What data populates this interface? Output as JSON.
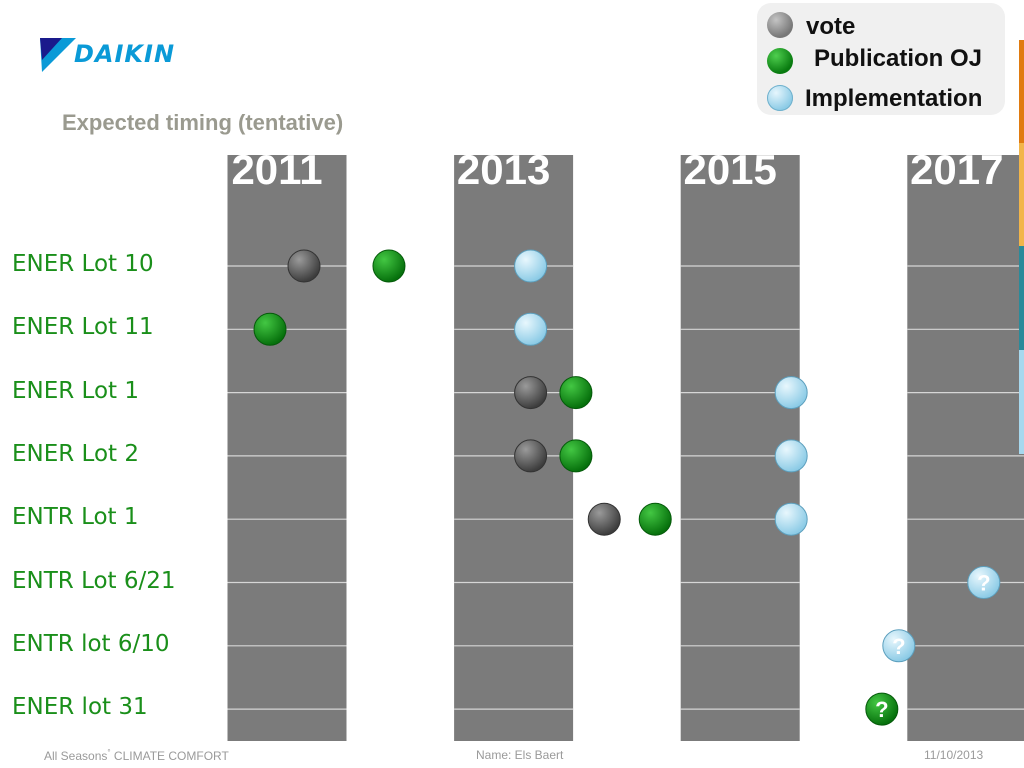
{
  "header": {
    "logo_text": "DAIKIN",
    "subtitle": "Expected timing (tentative)"
  },
  "legend": [
    {
      "label": "vote",
      "color": "#8a8a8a"
    },
    {
      "label": "Publication OJ",
      "color": "#0b8a14"
    },
    {
      "label": "Implementation",
      "color": "#a7d8ee"
    }
  ],
  "chart_data": {
    "type": "scatter",
    "title": "Expected timing (tentative)",
    "x_tick_labels": [
      "2011",
      "2013",
      "2015",
      "2017"
    ],
    "categories": [
      "ENER Lot 10",
      "ENER Lot 11",
      "ENER Lot 1",
      "ENER Lot 2",
      "ENTR Lot 1",
      "ENTR Lot 6/21",
      "ENTR lot 6/10",
      "ENER lot 31"
    ],
    "series": [
      {
        "name": "vote",
        "color": "#555555",
        "points": [
          {
            "category": "ENER Lot 10",
            "x": 2011.15
          },
          {
            "category": "ENER Lot 1",
            "x": 2013.15
          },
          {
            "category": "ENER Lot 2",
            "x": 2013.15
          },
          {
            "category": "ENTR Lot 1",
            "x": 2013.8
          }
        ]
      },
      {
        "name": "Publication OJ",
        "color": "#0b8a14",
        "points": [
          {
            "category": "ENER Lot 10",
            "x": 2011.9
          },
          {
            "category": "ENER Lot 11",
            "x": 2010.85
          },
          {
            "category": "ENER Lot 1",
            "x": 2013.55
          },
          {
            "category": "ENER Lot 2",
            "x": 2013.55
          },
          {
            "category": "ENTR Lot 1",
            "x": 2014.25
          },
          {
            "category": "ENER lot 31",
            "x": 2016.25,
            "tentative": true,
            "marker_text": "?"
          }
        ]
      },
      {
        "name": "Implementation",
        "color": "#a7d8ee",
        "points": [
          {
            "category": "ENER Lot 10",
            "x": 2013.15
          },
          {
            "category": "ENER Lot 11",
            "x": 2013.15
          },
          {
            "category": "ENER Lot 1",
            "x": 2015.45
          },
          {
            "category": "ENER Lot 2",
            "x": 2015.45
          },
          {
            "category": "ENTR Lot 1",
            "x": 2015.45
          },
          {
            "category": "ENTR Lot 6/21",
            "x": 2017.15,
            "tentative": true,
            "marker_text": "?"
          },
          {
            "category": "ENTR lot 6/10",
            "x": 2016.4,
            "tentative": true,
            "marker_text": "?"
          }
        ]
      }
    ],
    "grid": true,
    "legend_position": "top-right"
  },
  "footer": {
    "left_text_a": "All Seasons",
    "left_sup": "°",
    "left_text_b": "CLIMATE COMFORT",
    "center": "Name:  Els Baert",
    "right": "11/10/2013"
  },
  "colors": {
    "column": "#7b7b7b",
    "grid_line": "#d6d6d6",
    "label": "#1a8f1a",
    "edge": [
      "#e07b10",
      "#f2b54a",
      "#2a8a9a",
      "#a7d8ee"
    ]
  }
}
